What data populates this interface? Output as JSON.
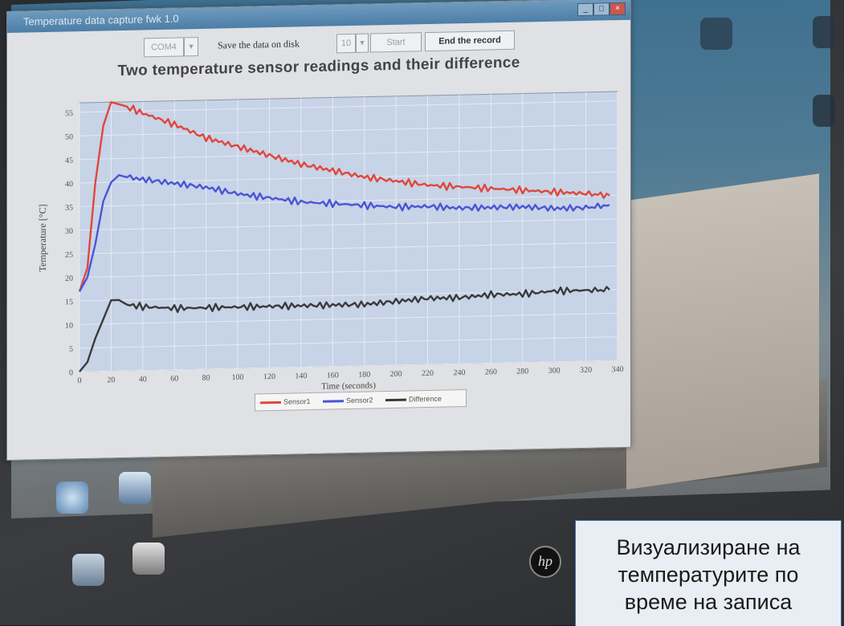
{
  "window": {
    "title": "Temperature data capture fwk 1.0"
  },
  "toolbar": {
    "port_value": "COM4",
    "save_label": "Save the data on disk",
    "interval_value": "10",
    "start_label": "Start",
    "end_label": "End the record"
  },
  "caption": {
    "line1": "Визуализиране на",
    "line2": "температурите по",
    "line3": "време на записа"
  },
  "brand": {
    "logo_text": "hp"
  },
  "chart_data": {
    "type": "line",
    "title": "Two temperature sensor readings and their difference",
    "xlabel": "Time (seconds)",
    "ylabel": "Temperature [°C]",
    "xlim": [
      0,
      340
    ],
    "ylim": [
      0,
      57
    ],
    "x_ticks": [
      0,
      20,
      40,
      60,
      80,
      100,
      120,
      140,
      160,
      180,
      200,
      220,
      240,
      260,
      280,
      300,
      320,
      340
    ],
    "y_ticks": [
      0,
      5,
      10,
      15,
      20,
      25,
      30,
      35,
      40,
      45,
      50,
      55
    ],
    "grid": true,
    "legend_position": "bottom",
    "series": [
      {
        "name": "Sensor1",
        "color": "#e0473c",
        "x": [
          0,
          5,
          10,
          15,
          20,
          25,
          30,
          40,
          60,
          80,
          100,
          120,
          140,
          160,
          180,
          200,
          220,
          240,
          260,
          280,
          300,
          320,
          335
        ],
        "values": [
          17,
          22,
          40,
          52,
          57,
          56.5,
          56,
          54.5,
          52,
          49,
          47,
          45,
          43,
          41.5,
          40,
          39,
          38,
          37.5,
          37,
          36.5,
          36,
          35.5,
          35
        ]
      },
      {
        "name": "Sensor2",
        "color": "#4a55d6",
        "x": [
          0,
          5,
          10,
          15,
          20,
          25,
          30,
          40,
          60,
          80,
          100,
          120,
          140,
          160,
          180,
          200,
          220,
          240,
          260,
          280,
          300,
          320,
          335
        ],
        "values": [
          17,
          20,
          27,
          36,
          40,
          41.5,
          41,
          40.5,
          39.5,
          38.5,
          37,
          36,
          35,
          34.5,
          34,
          33.5,
          33.5,
          33,
          33,
          33,
          32.5,
          32.5,
          33
        ]
      },
      {
        "name": "Difference",
        "color": "#3a3a3a",
        "x": [
          0,
          5,
          10,
          15,
          20,
          25,
          30,
          40,
          60,
          80,
          100,
          120,
          140,
          160,
          180,
          200,
          220,
          240,
          260,
          280,
          300,
          320,
          335
        ],
        "values": [
          0,
          2,
          7,
          11,
          15,
          15,
          14,
          13.5,
          13,
          13,
          13,
          13,
          13,
          13,
          13,
          13.5,
          14,
          14,
          14.5,
          14.5,
          15,
          15,
          15
        ]
      }
    ]
  }
}
